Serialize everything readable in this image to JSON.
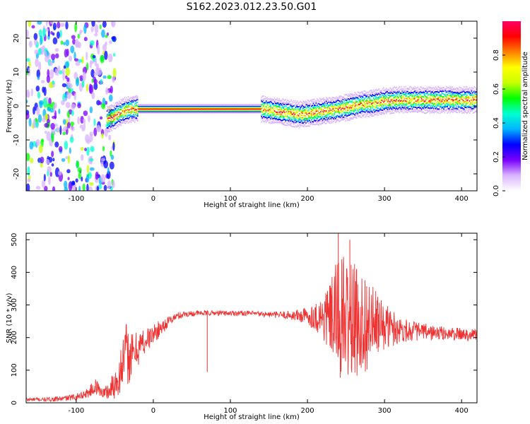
{
  "figure_title": "S162.2023.012.23.50.G01",
  "chart_data": [
    {
      "type": "heatmap",
      "title": "S162.2023.012.23.50.G01",
      "xlabel": "Height of straight line (km)",
      "ylabel": "Frequency (Hz)",
      "xlim": [
        -165,
        420
      ],
      "ylim": [
        -25,
        25
      ],
      "x_ticks": [
        -100,
        0,
        100,
        200,
        300,
        400
      ],
      "y_ticks": [
        -20,
        -10,
        0,
        10,
        20
      ],
      "colorbar": {
        "label": "Normalized spectral amplitude",
        "range": [
          0,
          1
        ],
        "ticks": [
          "0.0",
          "0.2",
          "0.4",
          "0.6",
          "0.8"
        ],
        "colormap": [
          "#ffffff",
          "#d9b3ff",
          "#7a00ff",
          "#0000ff",
          "#00b4ff",
          "#00ffd0",
          "#00ff00",
          "#c8ff00",
          "#ffff00",
          "#ff8000",
          "#ff0000",
          "#ff0066"
        ]
      },
      "ridge": {
        "x": [
          -60,
          -50,
          -40,
          -30,
          -20,
          0,
          50,
          100,
          140,
          150,
          170,
          190,
          200,
          220,
          250,
          270,
          290,
          300,
          320,
          350,
          380,
          420
        ],
        "y": [
          -4,
          -3,
          -1.5,
          -1,
          -0.8,
          -0.8,
          -0.8,
          -0.8,
          -0.8,
          -1.2,
          -1.8,
          -2.5,
          -2.2,
          -1.5,
          -0.5,
          0.5,
          1.0,
          1.5,
          1.8,
          1.8,
          1.8,
          1.8
        ]
      },
      "low_height_scatter_region": {
        "x_range": [
          -165,
          -50
        ],
        "y_range": [
          -25,
          25
        ]
      }
    },
    {
      "type": "line",
      "xlabel": "Height of straight line (km)",
      "ylabel": "SNR (10 * v/v)",
      "xlim": [
        -165,
        420
      ],
      "ylim": [
        0,
        520
      ],
      "x_ticks": [
        -100,
        0,
        100,
        200,
        300,
        400
      ],
      "y_ticks": [
        0,
        100,
        200,
        300,
        400,
        500
      ],
      "color": "#ee3333",
      "series": [
        {
          "x": [
            -165,
            -140,
            -120,
            -100,
            -85,
            -75,
            -65,
            -55,
            -45,
            -40,
            -35,
            -30,
            -25,
            -20,
            -10,
            0,
            10,
            20,
            30,
            40,
            60,
            80,
            100,
            120,
            140,
            160,
            180,
            200,
            210,
            220,
            230,
            240,
            250,
            260,
            270,
            280,
            290,
            300,
            310,
            320,
            340,
            360,
            380,
            400,
            420
          ],
          "y_mean": [
            10,
            10,
            12,
            18,
            30,
            50,
            30,
            40,
            80,
            120,
            150,
            140,
            150,
            170,
            190,
            210,
            230,
            250,
            265,
            272,
            275,
            275,
            275,
            275,
            272,
            270,
            268,
            265,
            265,
            262,
            260,
            258,
            255,
            250,
            245,
            240,
            238,
            235,
            230,
            225,
            220,
            215,
            212,
            210,
            210
          ],
          "y_spread": [
            6,
            6,
            8,
            10,
            15,
            25,
            15,
            40,
            60,
            80,
            100,
            80,
            60,
            60,
            40,
            30,
            25,
            15,
            12,
            10,
            8,
            8,
            8,
            8,
            8,
            10,
            15,
            30,
            40,
            80,
            110,
            200,
            200,
            180,
            160,
            140,
            100,
            70,
            60,
            40,
            30,
            25,
            20,
            20,
            20
          ],
          "peaks": [
            {
              "x": 240,
              "y": 520
            },
            {
              "x": 255,
              "y": 500
            },
            {
              "x": 70,
              "y": 95
            }
          ]
        }
      ]
    }
  ]
}
